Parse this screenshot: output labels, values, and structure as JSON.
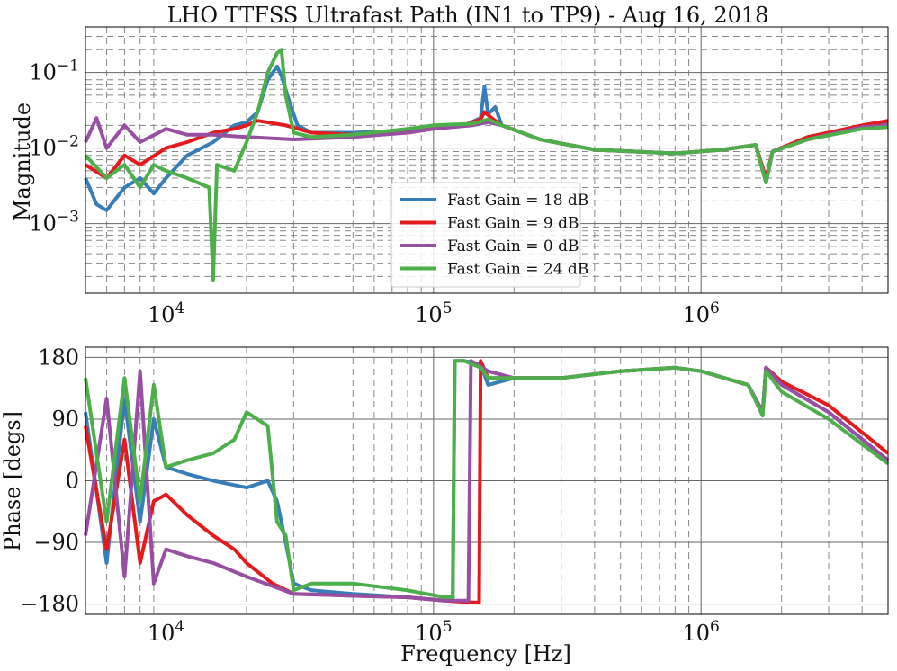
{
  "chart_data": {
    "type": "line",
    "title": "LHO TTFSS Ultrafast Path (IN1 to TP9) - Aug 16, 2018",
    "xlabel": "Frequency [Hz]",
    "x_scale": "log",
    "xlim": [
      5000,
      5000000
    ],
    "x_tick_labels": [
      "10^4",
      "10^5",
      "10^6"
    ],
    "grid": true,
    "legend_placement": "lower-center (top panel)",
    "panels": [
      {
        "ylabel": "Magnitude",
        "y_scale": "log",
        "ylim": [
          0.00012,
          0.4
        ],
        "y_tick_labels": [
          "10^-3",
          "10^-2",
          "10^-1"
        ]
      },
      {
        "ylabel": "Phase [degs]",
        "y_scale": "linear",
        "ylim": [
          -195,
          195
        ],
        "y_tick_labels": [
          "180",
          "90",
          "0",
          "−90",
          "−180"
        ]
      }
    ],
    "series": [
      {
        "name": "Fast Gain = 18 dB",
        "color": "#377eb8",
        "magnitude": [
          [
            5000,
            0.004
          ],
          [
            5500,
            0.0018
          ],
          [
            6000,
            0.0015
          ],
          [
            7000,
            0.003
          ],
          [
            8000,
            0.004
          ],
          [
            9000,
            0.0025
          ],
          [
            10000,
            0.004
          ],
          [
            12000,
            0.008
          ],
          [
            15000,
            0.012
          ],
          [
            18000,
            0.02
          ],
          [
            20000,
            0.022
          ],
          [
            22000,
            0.03
          ],
          [
            24000,
            0.08
          ],
          [
            26000,
            0.12
          ],
          [
            27000,
            0.09
          ],
          [
            29000,
            0.04
          ],
          [
            31000,
            0.02
          ],
          [
            35000,
            0.016
          ],
          [
            50000,
            0.016
          ],
          [
            80000,
            0.017
          ],
          [
            100000,
            0.018
          ],
          [
            130000,
            0.02
          ],
          [
            150000,
            0.025
          ],
          [
            155000,
            0.065
          ],
          [
            160000,
            0.028
          ],
          [
            170000,
            0.035
          ],
          [
            180000,
            0.02
          ],
          [
            250000,
            0.013
          ],
          [
            400000,
            0.0095
          ],
          [
            800000,
            0.0085
          ],
          [
            1200000,
            0.0095
          ],
          [
            1600000,
            0.011
          ],
          [
            1750000,
            0.0035
          ],
          [
            1850000,
            0.009
          ],
          [
            2500000,
            0.013
          ],
          [
            4000000,
            0.019
          ],
          [
            5000000,
            0.021
          ]
        ],
        "phase": [
          [
            5000,
            100
          ],
          [
            6000,
            -120
          ],
          [
            7000,
            120
          ],
          [
            8000,
            -60
          ],
          [
            9000,
            90
          ],
          [
            10000,
            20
          ],
          [
            12000,
            10
          ],
          [
            15000,
            0
          ],
          [
            20000,
            -10
          ],
          [
            24000,
            0
          ],
          [
            26000,
            -30
          ],
          [
            28000,
            -90
          ],
          [
            30000,
            -150
          ],
          [
            35000,
            -160
          ],
          [
            50000,
            -165
          ],
          [
            80000,
            -170
          ],
          [
            110000,
            -175
          ],
          [
            118000,
            -175
          ],
          [
            120000,
            175
          ],
          [
            130000,
            175
          ],
          [
            150000,
            170
          ],
          [
            160000,
            140
          ],
          [
            200000,
            150
          ],
          [
            300000,
            150
          ],
          [
            500000,
            160
          ],
          [
            800000,
            165
          ],
          [
            1000000,
            160
          ],
          [
            1500000,
            140
          ],
          [
            1700000,
            100
          ],
          [
            1750000,
            165
          ],
          [
            2000000,
            140
          ],
          [
            3000000,
            100
          ],
          [
            5000000,
            30
          ]
        ]
      },
      {
        "name": "Fast Gain = 9 dB",
        "color": "#e41a1c",
        "magnitude": [
          [
            5000,
            0.006
          ],
          [
            6000,
            0.004
          ],
          [
            7000,
            0.008
          ],
          [
            8000,
            0.006
          ],
          [
            10000,
            0.01
          ],
          [
            12000,
            0.012
          ],
          [
            15000,
            0.016
          ],
          [
            18000,
            0.018
          ],
          [
            20000,
            0.02
          ],
          [
            22000,
            0.023
          ],
          [
            28000,
            0.02
          ],
          [
            35000,
            0.016
          ],
          [
            50000,
            0.015
          ],
          [
            80000,
            0.016
          ],
          [
            100000,
            0.018
          ],
          [
            130000,
            0.02
          ],
          [
            150000,
            0.024
          ],
          [
            155000,
            0.03
          ],
          [
            165000,
            0.025
          ],
          [
            180000,
            0.02
          ],
          [
            250000,
            0.013
          ],
          [
            400000,
            0.0095
          ],
          [
            800000,
            0.0085
          ],
          [
            1200000,
            0.0095
          ],
          [
            1600000,
            0.011
          ],
          [
            1750000,
            0.004
          ],
          [
            1850000,
            0.009
          ],
          [
            2500000,
            0.014
          ],
          [
            4000000,
            0.02
          ],
          [
            5000000,
            0.023
          ]
        ],
        "phase": [
          [
            5000,
            80
          ],
          [
            6000,
            -100
          ],
          [
            7000,
            60
          ],
          [
            8000,
            -120
          ],
          [
            9000,
            -30
          ],
          [
            10000,
            -20
          ],
          [
            12000,
            -50
          ],
          [
            15000,
            -80
          ],
          [
            18000,
            -100
          ],
          [
            20000,
            -120
          ],
          [
            25000,
            -150
          ],
          [
            30000,
            -165
          ],
          [
            50000,
            -168
          ],
          [
            80000,
            -170
          ],
          [
            110000,
            -175
          ],
          [
            148000,
            -178
          ],
          [
            150000,
            175
          ],
          [
            160000,
            150
          ],
          [
            200000,
            150
          ],
          [
            300000,
            150
          ],
          [
            500000,
            160
          ],
          [
            800000,
            165
          ],
          [
            1000000,
            160
          ],
          [
            1500000,
            140
          ],
          [
            1700000,
            100
          ],
          [
            1750000,
            165
          ],
          [
            2000000,
            145
          ],
          [
            3000000,
            110
          ],
          [
            5000000,
            40
          ]
        ]
      },
      {
        "name": "Fast Gain = 0 dB",
        "color": "#984ea3",
        "magnitude": [
          [
            5000,
            0.012
          ],
          [
            5500,
            0.025
          ],
          [
            6000,
            0.01
          ],
          [
            7000,
            0.02
          ],
          [
            8000,
            0.012
          ],
          [
            10000,
            0.018
          ],
          [
            12000,
            0.015
          ],
          [
            15000,
            0.015
          ],
          [
            20000,
            0.014
          ],
          [
            30000,
            0.013
          ],
          [
            50000,
            0.014
          ],
          [
            80000,
            0.016
          ],
          [
            100000,
            0.018
          ],
          [
            140000,
            0.02
          ],
          [
            160000,
            0.022
          ],
          [
            180000,
            0.02
          ],
          [
            250000,
            0.013
          ],
          [
            400000,
            0.0095
          ],
          [
            800000,
            0.0085
          ],
          [
            1200000,
            0.0095
          ],
          [
            1600000,
            0.011
          ],
          [
            1750000,
            0.0035
          ],
          [
            1850000,
            0.009
          ],
          [
            2500000,
            0.013
          ],
          [
            4000000,
            0.019
          ],
          [
            5000000,
            0.02
          ]
        ],
        "phase": [
          [
            5000,
            -80
          ],
          [
            6000,
            120
          ],
          [
            7000,
            -140
          ],
          [
            8000,
            160
          ],
          [
            9000,
            -150
          ],
          [
            10000,
            -100
          ],
          [
            12000,
            -110
          ],
          [
            15000,
            -120
          ],
          [
            20000,
            -140
          ],
          [
            30000,
            -165
          ],
          [
            50000,
            -168
          ],
          [
            80000,
            -170
          ],
          [
            110000,
            -175
          ],
          [
            135000,
            -175
          ],
          [
            138000,
            175
          ],
          [
            160000,
            160
          ],
          [
            200000,
            150
          ],
          [
            300000,
            150
          ],
          [
            500000,
            160
          ],
          [
            800000,
            165
          ],
          [
            1000000,
            160
          ],
          [
            1500000,
            140
          ],
          [
            1700000,
            100
          ],
          [
            1750000,
            165
          ],
          [
            2000000,
            140
          ],
          [
            3000000,
            100
          ],
          [
            5000000,
            30
          ]
        ]
      },
      {
        "name": "Fast Gain = 24 dB",
        "color": "#4daf4a",
        "magnitude": [
          [
            5000,
            0.008
          ],
          [
            6000,
            0.004
          ],
          [
            7000,
            0.006
          ],
          [
            8000,
            0.003
          ],
          [
            9000,
            0.006
          ],
          [
            10000,
            0.005
          ],
          [
            12000,
            0.004
          ],
          [
            14500,
            0.003
          ],
          [
            15000,
            0.00018
          ],
          [
            15500,
            0.006
          ],
          [
            18000,
            0.005
          ],
          [
            20000,
            0.012
          ],
          [
            22000,
            0.03
          ],
          [
            24000,
            0.1
          ],
          [
            26000,
            0.18
          ],
          [
            27000,
            0.2
          ],
          [
            28000,
            0.05
          ],
          [
            30000,
            0.016
          ],
          [
            35000,
            0.014
          ],
          [
            50000,
            0.015
          ],
          [
            80000,
            0.018
          ],
          [
            100000,
            0.02
          ],
          [
            140000,
            0.021
          ],
          [
            160000,
            0.024
          ],
          [
            180000,
            0.02
          ],
          [
            250000,
            0.013
          ],
          [
            400000,
            0.0095
          ],
          [
            800000,
            0.0085
          ],
          [
            1200000,
            0.0095
          ],
          [
            1600000,
            0.011
          ],
          [
            1750000,
            0.0035
          ],
          [
            1850000,
            0.009
          ],
          [
            2500000,
            0.013
          ],
          [
            4000000,
            0.018
          ],
          [
            5000000,
            0.019
          ]
        ],
        "phase": [
          [
            5000,
            150
          ],
          [
            6000,
            -60
          ],
          [
            7000,
            150
          ],
          [
            8000,
            -30
          ],
          [
            9000,
            140
          ],
          [
            10000,
            20
          ],
          [
            12000,
            30
          ],
          [
            15000,
            40
          ],
          [
            18000,
            60
          ],
          [
            20000,
            100
          ],
          [
            24000,
            80
          ],
          [
            26000,
            -60
          ],
          [
            28000,
            -80
          ],
          [
            30000,
            -160
          ],
          [
            35000,
            -150
          ],
          [
            50000,
            -150
          ],
          [
            80000,
            -160
          ],
          [
            110000,
            -170
          ],
          [
            118000,
            -170
          ],
          [
            120000,
            175
          ],
          [
            130000,
            175
          ],
          [
            150000,
            165
          ],
          [
            160000,
            150
          ],
          [
            200000,
            150
          ],
          [
            300000,
            150
          ],
          [
            500000,
            160
          ],
          [
            800000,
            165
          ],
          [
            1000000,
            160
          ],
          [
            1500000,
            140
          ],
          [
            1700000,
            95
          ],
          [
            1750000,
            160
          ],
          [
            2000000,
            130
          ],
          [
            3000000,
            90
          ],
          [
            5000000,
            25
          ]
        ]
      }
    ]
  }
}
